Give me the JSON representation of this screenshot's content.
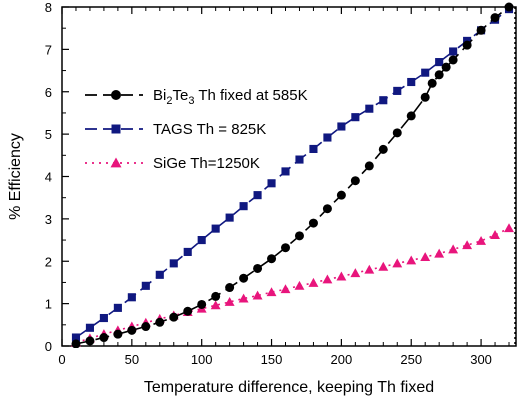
{
  "chart_data": {
    "type": "line",
    "title": "",
    "xlabel": "Temperature difference, keeping Th fixed",
    "ylabel": "% Efficiency",
    "xlim": [
      0,
      325
    ],
    "ylim": [
      0,
      8
    ],
    "xticks": [
      0,
      50,
      100,
      150,
      200,
      250,
      300
    ],
    "yticks": [
      0,
      1,
      2,
      3,
      4,
      5,
      6,
      7,
      8
    ],
    "grid": false,
    "legend_position": "upper-left",
    "series": [
      {
        "name": "Bi2Te3 Th fixed at 585K",
        "legend_parts": [
          "Bi",
          "2",
          "Te",
          "3",
          " Th fixed at 585K"
        ],
        "color": "#000000",
        "dash": "dashed",
        "marker": "circle",
        "x": [
          10,
          20,
          30,
          40,
          50,
          60,
          70,
          80,
          90,
          100,
          110,
          120,
          130,
          140,
          150,
          160,
          170,
          180,
          190,
          200,
          210,
          220,
          230,
          240,
          250,
          260,
          265,
          270,
          275,
          280,
          290,
          300,
          310,
          320
        ],
        "y": [
          0.05,
          0.12,
          0.2,
          0.28,
          0.37,
          0.46,
          0.56,
          0.68,
          0.82,
          0.98,
          1.17,
          1.38,
          1.6,
          1.83,
          2.06,
          2.32,
          2.6,
          2.9,
          3.24,
          3.56,
          3.9,
          4.25,
          4.64,
          5.03,
          5.43,
          5.87,
          6.2,
          6.4,
          6.58,
          6.75,
          7.1,
          7.45,
          7.75,
          8.0
        ]
      },
      {
        "name": "TAGS Th = 825K",
        "color": "#101880",
        "dash": "dashed",
        "marker": "square",
        "x": [
          10,
          20,
          30,
          40,
          50,
          60,
          70,
          80,
          90,
          100,
          110,
          120,
          130,
          140,
          150,
          160,
          170,
          180,
          190,
          200,
          210,
          220,
          230,
          240,
          250,
          260,
          270,
          280,
          290,
          300,
          310,
          320
        ],
        "y": [
          0.2,
          0.43,
          0.66,
          0.9,
          1.15,
          1.42,
          1.68,
          1.95,
          2.22,
          2.5,
          2.77,
          3.03,
          3.3,
          3.56,
          3.84,
          4.12,
          4.4,
          4.65,
          4.92,
          5.18,
          5.4,
          5.6,
          5.8,
          6.02,
          6.23,
          6.45,
          6.7,
          6.95,
          7.2,
          7.45,
          7.7,
          7.95
        ]
      },
      {
        "name": "SiGe Th=1250K",
        "color": "#e8157c",
        "dash": "dotted",
        "marker": "triangle",
        "x": [
          10,
          20,
          30,
          40,
          50,
          60,
          70,
          80,
          90,
          100,
          110,
          120,
          130,
          140,
          150,
          160,
          170,
          180,
          190,
          200,
          210,
          220,
          230,
          240,
          250,
          260,
          270,
          280,
          290,
          300,
          310,
          320
        ],
        "y": [
          0.08,
          0.18,
          0.28,
          0.37,
          0.46,
          0.55,
          0.64,
          0.72,
          0.8,
          0.88,
          0.96,
          1.04,
          1.12,
          1.19,
          1.27,
          1.34,
          1.42,
          1.49,
          1.57,
          1.64,
          1.72,
          1.8,
          1.87,
          1.95,
          2.02,
          2.1,
          2.18,
          2.28,
          2.38,
          2.48,
          2.62,
          2.78
        ]
      }
    ]
  }
}
